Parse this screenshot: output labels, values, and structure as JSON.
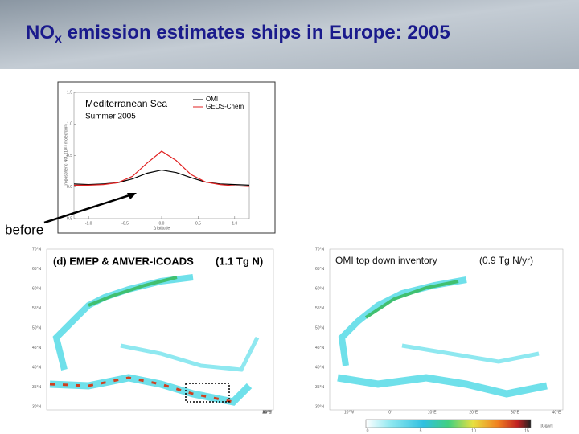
{
  "header": {
    "title_main": "NO",
    "title_sub": "x",
    "title_rest": " emission estimates ships in Europe: 2005"
  },
  "inset_chart": {
    "type": "line",
    "title": "Mediterranean Sea",
    "subtitle": "Summer 2005",
    "y_label": "Tropospheric NO₂ (10¹⁵ molec/cm²)",
    "x_label": "Δ latitude",
    "x": [
      -1.2,
      -1.0,
      -0.8,
      -0.6,
      -0.4,
      -0.2,
      0,
      0.2,
      0.4,
      0.6,
      0.8,
      1.0,
      1.2
    ],
    "series": [
      {
        "name": "OMI",
        "color": "#000000",
        "values": [
          0.05,
          0.04,
          0.05,
          0.07,
          0.13,
          0.22,
          0.27,
          0.23,
          0.15,
          0.08,
          0.05,
          0.04,
          0.03
        ]
      },
      {
        "name": "GEOS-Chem",
        "color": "#e02020",
        "values": [
          0.03,
          0.03,
          0.04,
          0.07,
          0.17,
          0.38,
          0.57,
          0.42,
          0.2,
          0.08,
          0.04,
          0.02,
          0.01
        ]
      }
    ],
    "xlim": [
      -1.2,
      1.2
    ],
    "ylim": [
      -0.5,
      1.5
    ],
    "xticks": [
      {
        "value": -1,
        "label": "-1.0"
      },
      -0.5,
      {
        "value": 0,
        "label": "0.0"
      },
      0.5,
      {
        "value": 1,
        "label": "1.0"
      }
    ],
    "yticks": [
      -0.5,
      {
        "value": 0,
        "label": "0.0"
      },
      0.5,
      {
        "value": 1,
        "label": "1.0"
      },
      1.5
    ]
  },
  "annotation": "before",
  "maps": {
    "left_title": "(d) EMEP & AMVER-ICOADS",
    "left_total": "(1.1 Tg N)",
    "right_title": "OMI top down inventory",
    "right_total": "(0.9 Tg N/yr)",
    "lat_labels": [
      "70°N",
      "65°N",
      "60°N",
      "55°N",
      "50°N",
      "45°N",
      "40°N",
      "35°N",
      "30°N"
    ],
    "lon_labels": [
      "10°W",
      "0°",
      "10°E",
      "20°E",
      "30°E",
      "40°E"
    ]
  },
  "colorbar": {
    "ticks": [
      "0",
      "5",
      "10",
      "15"
    ],
    "unit": "[Gg/yr]"
  }
}
